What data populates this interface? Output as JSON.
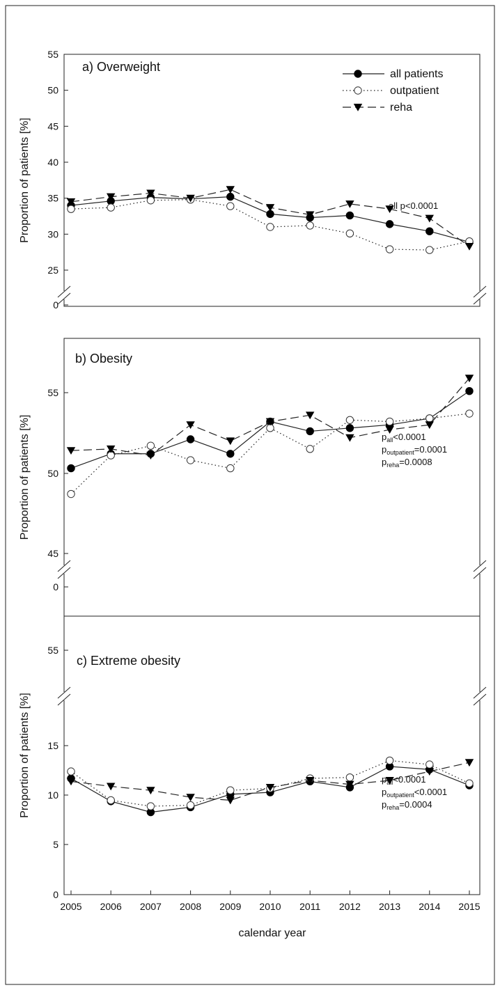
{
  "figure": {
    "xlabel": "calendar year",
    "ylabel": "Proportion of patients [%]",
    "x_ticks": [
      "2005",
      "2006",
      "2007",
      "2008",
      "2009",
      "2010",
      "2011",
      "2012",
      "2013",
      "2014",
      "2015"
    ]
  },
  "legend": {
    "placement": "top-right of panel a",
    "entries": [
      {
        "label": "all patients",
        "marker": "filled-circle",
        "line": "solid"
      },
      {
        "label": "outpatient",
        "marker": "open-circle",
        "line": "dotted"
      },
      {
        "label": "reha",
        "marker": "filled-triangle-down",
        "line": "dashed"
      }
    ]
  },
  "chart_data": [
    {
      "type": "line",
      "title": "a) Overweight",
      "annotation": "all p<0.0001",
      "xlabel": "",
      "ylabel": "Proportion of patients [%]",
      "ylim": [
        25,
        55
      ],
      "y_ticks": [
        "0",
        "25",
        "30",
        "35",
        "40",
        "45",
        "50",
        "55"
      ],
      "axis_break": "between 0 and 25",
      "grid": false,
      "x": [
        2005,
        2006,
        2007,
        2008,
        2009,
        2010,
        2011,
        2012,
        2013,
        2014,
        2015
      ],
      "series": [
        {
          "name": "all patients",
          "values": [
            34.0,
            34.6,
            35.1,
            34.9,
            35.2,
            32.8,
            32.3,
            32.6,
            31.4,
            30.4,
            28.9
          ]
        },
        {
          "name": "outpatient",
          "values": [
            33.5,
            33.7,
            34.7,
            34.8,
            33.9,
            31.0,
            31.2,
            30.1,
            27.9,
            27.8,
            29.0
          ]
        },
        {
          "name": "reha",
          "values": [
            34.5,
            35.2,
            35.7,
            35.0,
            36.2,
            33.7,
            32.7,
            34.2,
            33.5,
            32.2,
            28.3
          ]
        }
      ]
    },
    {
      "type": "line",
      "title": "b) Obesity",
      "annotation_lines": [
        {
          "main": "p",
          "sub": "all",
          "rest": "<0.0001"
        },
        {
          "main": "p",
          "sub": "outpatient",
          "rest": "=0.0001"
        },
        {
          "main": "p",
          "sub": "reha",
          "rest": "=0.0008"
        }
      ],
      "xlabel": "",
      "ylabel": "Proportion of patients [%]",
      "ylim": [
        45,
        56.5
      ],
      "y_ticks": [
        "0",
        "45",
        "50",
        "55"
      ],
      "axis_break": "between 0 and 45",
      "grid": false,
      "x": [
        2005,
        2006,
        2007,
        2008,
        2009,
        2010,
        2011,
        2012,
        2013,
        2014,
        2015
      ],
      "series": [
        {
          "name": "all patients",
          "values": [
            50.3,
            51.2,
            51.2,
            52.1,
            51.2,
            53.2,
            52.6,
            52.8,
            53.0,
            53.4,
            55.1
          ]
        },
        {
          "name": "outpatient",
          "values": [
            48.7,
            51.1,
            51.7,
            50.8,
            50.3,
            52.8,
            51.5,
            53.3,
            53.2,
            53.4,
            53.7
          ]
        },
        {
          "name": "reha",
          "values": [
            51.4,
            51.5,
            51.1,
            53.0,
            52.0,
            53.2,
            53.6,
            52.2,
            52.7,
            53.0,
            55.9
          ]
        }
      ]
    },
    {
      "type": "line",
      "title": "c) Extreme obesity",
      "annotation_lines": [
        {
          "main": "p",
          "sub": "all",
          "rest": "<0.0001"
        },
        {
          "main": "p",
          "sub": "outpatient",
          "rest": "<0.0001"
        },
        {
          "main": "p",
          "sub": "reha",
          "rest": "=0.0004"
        }
      ],
      "xlabel": "calendar year",
      "ylabel": "Proportion of patients [%]",
      "ylim": [
        0,
        16.5
      ],
      "y_ticks": [
        "0",
        "5",
        "10",
        "15",
        "55"
      ],
      "axis_break": "between 15 and 55",
      "grid": false,
      "x": [
        2005,
        2006,
        2007,
        2008,
        2009,
        2010,
        2011,
        2012,
        2013,
        2014,
        2015
      ],
      "series": [
        {
          "name": "all patients",
          "values": [
            11.7,
            9.4,
            8.3,
            8.8,
            10.1,
            10.3,
            11.4,
            10.8,
            12.9,
            12.6,
            11.0
          ]
        },
        {
          "name": "outpatient",
          "values": [
            12.4,
            9.5,
            8.9,
            9.0,
            10.5,
            10.7,
            11.7,
            11.8,
            13.5,
            13.1,
            11.2
          ]
        },
        {
          "name": "reha",
          "values": [
            11.4,
            10.9,
            10.5,
            9.8,
            9.5,
            10.8,
            11.5,
            11.1,
            11.5,
            12.4,
            13.3
          ]
        }
      ]
    }
  ]
}
